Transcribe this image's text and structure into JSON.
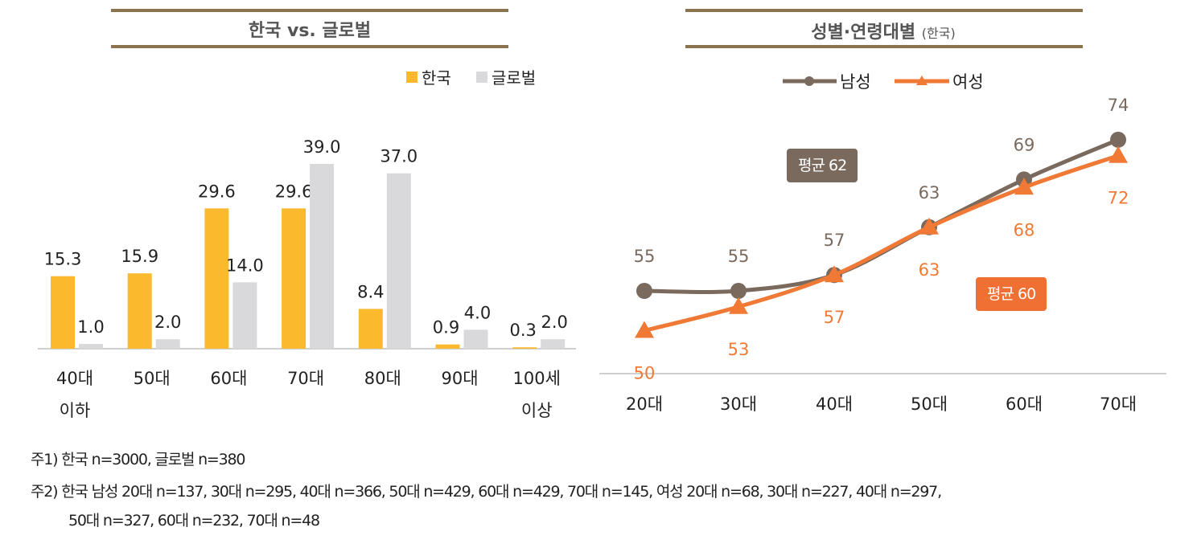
{
  "colors": {
    "header_rule": "#8B7350",
    "korea": "#FBBA2E",
    "global": "#D9D9DB",
    "male": "#7A6A5E",
    "female": "#F07A35",
    "text": "#222222",
    "value_male": "#7A6A5E",
    "value_female": "#F07A35"
  },
  "chart_data": [
    {
      "type": "bar",
      "title": "한국 vs. 글로벌",
      "categories": [
        "40대\n이하",
        "50대",
        "60대",
        "70대",
        "80대",
        "90대",
        "100세\n이상"
      ],
      "series": [
        {
          "name": "한국",
          "values": [
            15.3,
            15.9,
            29.6,
            29.6,
            8.4,
            0.9,
            0.3
          ],
          "labels": [
            "15.3",
            "15.9",
            "29.6",
            "29.6",
            "8.4",
            "0.9",
            "0.3"
          ]
        },
        {
          "name": "글로벌",
          "values": [
            1.0,
            2.0,
            14.0,
            39.0,
            37.0,
            4.0,
            2.0
          ],
          "labels": [
            "1.0",
            "2.0",
            "14.0",
            "39.0",
            "37.0",
            "4.0",
            "2.0"
          ]
        }
      ],
      "legend": "top-right",
      "grid": false
    },
    {
      "type": "line",
      "title": "성별·연령대별",
      "subtitle": "(한국)",
      "categories": [
        "20대",
        "30대",
        "40대",
        "50대",
        "60대",
        "70대"
      ],
      "series": [
        {
          "name": "남성",
          "values": [
            55,
            55,
            57,
            63,
            69,
            74
          ],
          "marker": "circle"
        },
        {
          "name": "여성",
          "values": [
            50,
            53,
            57,
            63,
            68,
            72
          ],
          "marker": "triangle"
        }
      ],
      "annotations": [
        "평균 62",
        "평균 60"
      ],
      "legend": "top",
      "grid": false
    }
  ],
  "notes": [
    "주1) 한국 n=3000, 글로벌 n=380",
    "주2) 한국 남성 20대 n=137, 30대 n=295, 40대 n=366, 50대 n=429, 60대 n=429, 70대 n=145, 여성 20대 n=68, 30대 n=227, 40대 n=297,",
    "50대 n=327, 60대 n=232, 70대 n=48"
  ]
}
